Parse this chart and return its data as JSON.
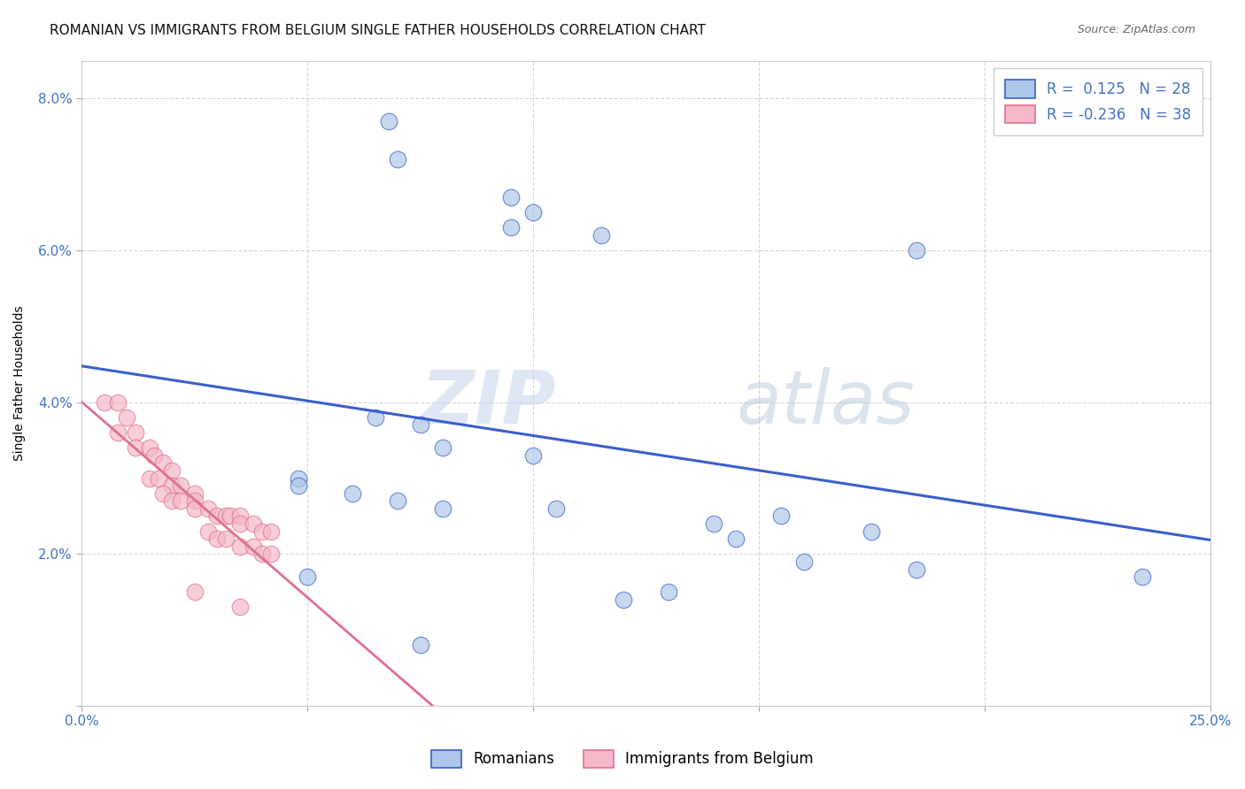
{
  "title": "ROMANIAN VS IMMIGRANTS FROM BELGIUM SINGLE FATHER HOUSEHOLDS CORRELATION CHART",
  "source": "Source: ZipAtlas.com",
  "ylabel": "Single Father Households",
  "xlim": [
    0.0,
    0.25
  ],
  "ylim": [
    0.0,
    0.085
  ],
  "xtick_vals": [
    0.0,
    0.05,
    0.1,
    0.15,
    0.2,
    0.25
  ],
  "xticklabels": [
    "0.0%",
    "",
    "",
    "",
    "",
    "25.0%"
  ],
  "ytick_vals": [
    0.0,
    0.02,
    0.04,
    0.06,
    0.08
  ],
  "yticklabels": [
    "",
    "2.0%",
    "4.0%",
    "6.0%",
    "8.0%"
  ],
  "blue_R": 0.125,
  "blue_N": 28,
  "pink_R": -0.236,
  "pink_N": 38,
  "blue_color": "#aec6e8",
  "pink_color": "#f4b8c8",
  "blue_line_color": "#3a5fcd",
  "pink_line_color": "#e07090",
  "blue_scatter_x": [
    0.068,
    0.07,
    0.095,
    0.1,
    0.095,
    0.115,
    0.185,
    0.065,
    0.08,
    0.1,
    0.048,
    0.048,
    0.06,
    0.07,
    0.08,
    0.075,
    0.105,
    0.155,
    0.14,
    0.175,
    0.145,
    0.16,
    0.05,
    0.185,
    0.235,
    0.13,
    0.12,
    0.075
  ],
  "blue_scatter_y": [
    0.077,
    0.072,
    0.067,
    0.065,
    0.063,
    0.062,
    0.06,
    0.038,
    0.034,
    0.033,
    0.03,
    0.029,
    0.028,
    0.027,
    0.026,
    0.037,
    0.026,
    0.025,
    0.024,
    0.023,
    0.022,
    0.019,
    0.017,
    0.018,
    0.017,
    0.015,
    0.014,
    0.008
  ],
  "pink_scatter_x": [
    0.005,
    0.008,
    0.01,
    0.008,
    0.012,
    0.012,
    0.015,
    0.016,
    0.018,
    0.02,
    0.015,
    0.017,
    0.02,
    0.022,
    0.025,
    0.018,
    0.02,
    0.022,
    0.025,
    0.025,
    0.028,
    0.03,
    0.032,
    0.033,
    0.035,
    0.035,
    0.038,
    0.04,
    0.042,
    0.028,
    0.03,
    0.032,
    0.035,
    0.038,
    0.04,
    0.042,
    0.025,
    0.035
  ],
  "pink_scatter_y": [
    0.04,
    0.04,
    0.038,
    0.036,
    0.036,
    0.034,
    0.034,
    0.033,
    0.032,
    0.031,
    0.03,
    0.03,
    0.029,
    0.029,
    0.028,
    0.028,
    0.027,
    0.027,
    0.027,
    0.026,
    0.026,
    0.025,
    0.025,
    0.025,
    0.025,
    0.024,
    0.024,
    0.023,
    0.023,
    0.023,
    0.022,
    0.022,
    0.021,
    0.021,
    0.02,
    0.02,
    0.015,
    0.013
  ],
  "watermark_zip": "ZIP",
  "watermark_atlas": "atlas",
  "title_fontsize": 11,
  "axis_label_fontsize": 10,
  "tick_fontsize": 11
}
